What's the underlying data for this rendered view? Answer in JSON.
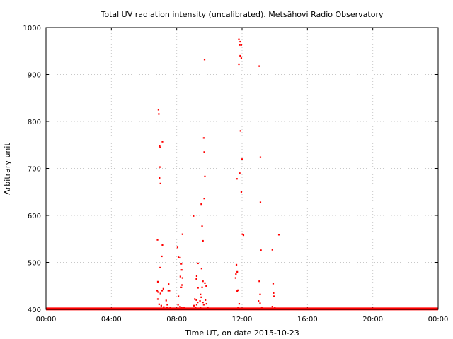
{
  "chart_data": {
    "type": "scatter",
    "title": "Total UV radiation intensity (uncalibrated). Metsähovi Radio Observatory",
    "xlabel": "Time UT, on date 2015-10-23",
    "ylabel": "Arbitrary unit",
    "xlim": [
      0,
      24
    ],
    "ylim": [
      400,
      1000
    ],
    "x_ticks": [
      {
        "value": 0,
        "label": "00:00"
      },
      {
        "value": 4,
        "label": "04:00"
      },
      {
        "value": 8,
        "label": "08:00"
      },
      {
        "value": 12,
        "label": "12:00"
      },
      {
        "value": 16,
        "label": "16:00"
      },
      {
        "value": 20,
        "label": "20:00"
      },
      {
        "value": 24,
        "label": "00:00"
      }
    ],
    "y_ticks": [
      {
        "value": 400,
        "label": "400"
      },
      {
        "value": 500,
        "label": "500"
      },
      {
        "value": 600,
        "label": "600"
      },
      {
        "value": 700,
        "label": "700"
      },
      {
        "value": 800,
        "label": "800"
      },
      {
        "value": 900,
        "label": "900"
      },
      {
        "value": 1000,
        "label": "1000"
      }
    ],
    "grid": true,
    "marker_color": "#ff0000",
    "baseline_value": 401,
    "points": [
      [
        6.82,
        548
      ],
      [
        6.88,
        825
      ],
      [
        6.9,
        816
      ],
      [
        6.95,
        748
      ],
      [
        6.98,
        745
      ],
      [
        6.96,
        703
      ],
      [
        6.94,
        680
      ],
      [
        7.0,
        668
      ],
      [
        7.12,
        757
      ],
      [
        7.12,
        537
      ],
      [
        7.08,
        513
      ],
      [
        6.98,
        489
      ],
      [
        6.84,
        459
      ],
      [
        6.8,
        440
      ],
      [
        6.86,
        437
      ],
      [
        7.0,
        434
      ],
      [
        7.1,
        440
      ],
      [
        7.18,
        444
      ],
      [
        6.84,
        422
      ],
      [
        6.92,
        411
      ],
      [
        7.05,
        408
      ],
      [
        7.2,
        405
      ],
      [
        7.35,
        419
      ],
      [
        7.42,
        410
      ],
      [
        7.5,
        454
      ],
      [
        7.48,
        440
      ],
      [
        7.55,
        440
      ],
      [
        7.4,
        404
      ],
      [
        7.6,
        403
      ],
      [
        8.05,
        532
      ],
      [
        8.1,
        511
      ],
      [
        8.2,
        510
      ],
      [
        8.35,
        560
      ],
      [
        8.28,
        497
      ],
      [
        8.3,
        484
      ],
      [
        8.22,
        470
      ],
      [
        8.35,
        467
      ],
      [
        8.32,
        452
      ],
      [
        8.28,
        447
      ],
      [
        8.1,
        428
      ],
      [
        8.08,
        410
      ],
      [
        8.2,
        406
      ],
      [
        8.3,
        404
      ],
      [
        8.45,
        403
      ],
      [
        9.02,
        599
      ],
      [
        9.3,
        498
      ],
      [
        9.22,
        471
      ],
      [
        9.2,
        465
      ],
      [
        9.3,
        446
      ],
      [
        9.1,
        422
      ],
      [
        9.2,
        420
      ],
      [
        9.28,
        415
      ],
      [
        9.22,
        410
      ],
      [
        9.05,
        408
      ],
      [
        9.15,
        404
      ],
      [
        9.5,
        624
      ],
      [
        9.55,
        577
      ],
      [
        9.6,
        546
      ],
      [
        9.52,
        487
      ],
      [
        9.6,
        460
      ],
      [
        9.55,
        447
      ],
      [
        9.45,
        432
      ],
      [
        9.5,
        426
      ],
      [
        9.42,
        418
      ],
      [
        9.6,
        415
      ],
      [
        9.65,
        410
      ],
      [
        9.45,
        404
      ],
      [
        9.65,
        765
      ],
      [
        9.68,
        735
      ],
      [
        9.72,
        683
      ],
      [
        9.68,
        636
      ],
      [
        9.7,
        932
      ],
      [
        9.72,
        456
      ],
      [
        9.8,
        450
      ],
      [
        9.75,
        420
      ],
      [
        9.82,
        412
      ],
      [
        9.9,
        404
      ],
      [
        11.8,
        975
      ],
      [
        11.88,
        970
      ],
      [
        11.85,
        963
      ],
      [
        11.95,
        963
      ],
      [
        11.8,
        922
      ],
      [
        11.88,
        940
      ],
      [
        11.95,
        935
      ],
      [
        11.9,
        780
      ],
      [
        12.0,
        720
      ],
      [
        11.85,
        690
      ],
      [
        11.68,
        678
      ],
      [
        11.95,
        650
      ],
      [
        12.02,
        560
      ],
      [
        12.08,
        558
      ],
      [
        11.65,
        495
      ],
      [
        11.7,
        480
      ],
      [
        11.62,
        475
      ],
      [
        11.6,
        467
      ],
      [
        11.75,
        441
      ],
      [
        11.7,
        439
      ],
      [
        11.82,
        412
      ],
      [
        11.75,
        404
      ],
      [
        13.05,
        918
      ],
      [
        13.12,
        724
      ],
      [
        13.12,
        628
      ],
      [
        13.15,
        526
      ],
      [
        13.05,
        460
      ],
      [
        13.1,
        432
      ],
      [
        13.0,
        418
      ],
      [
        13.1,
        413
      ],
      [
        13.2,
        404
      ],
      [
        13.85,
        527
      ],
      [
        13.9,
        455
      ],
      [
        13.92,
        435
      ],
      [
        13.95,
        428
      ],
      [
        13.85,
        406
      ],
      [
        14.0,
        403
      ],
      [
        14.25,
        559
      ]
    ]
  }
}
